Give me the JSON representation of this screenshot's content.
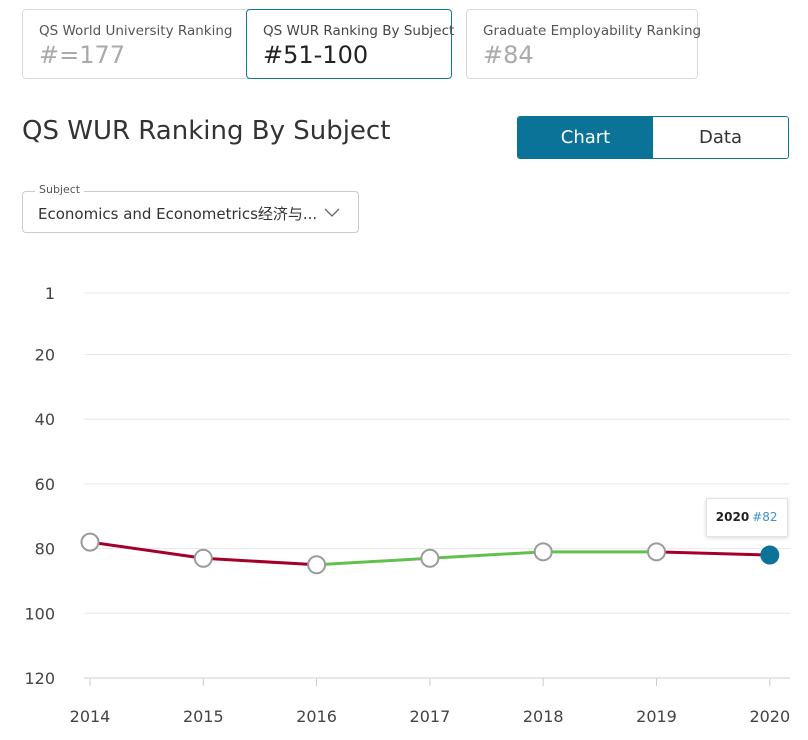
{
  "rank_cards": [
    {
      "label": "QS World University Ranking",
      "value": "#=177"
    },
    {
      "label": "QS WUR Ranking By Subject",
      "value": "#51-100"
    },
    {
      "label": "Graduate Employability Ranking",
      "value": "#84"
    }
  ],
  "section_title": "QS WUR Ranking By Subject",
  "view_toggle": {
    "chart_label": "Chart",
    "data_label": "Data",
    "selected": "Chart"
  },
  "subject_select": {
    "legend": "Subject",
    "value": "Economics and Econometrics经济与..."
  },
  "colors": {
    "accent": "#0c7398",
    "line_down": "#a5002a",
    "line_up": "#62c14d",
    "marker_fill": "#ffffff",
    "marker_stroke": "#9a9a9a",
    "highlight_marker": "#0c7398",
    "tooltip_rank": "#3f8fd6"
  },
  "tooltip": {
    "year": "2020",
    "rank": "#82"
  },
  "chart_data": {
    "type": "line",
    "x": [
      "2014",
      "2015",
      "2016",
      "2017",
      "2018",
      "2019",
      "2020"
    ],
    "values": [
      78,
      83,
      85,
      83,
      81,
      81,
      82
    ],
    "y_axis_reversed": true,
    "ylim": [
      1,
      120
    ],
    "y_ticks": [
      1,
      20,
      40,
      60,
      80,
      100,
      120
    ],
    "y_tick_labels": [
      "1",
      "20",
      "40",
      "60",
      "80",
      "100",
      "120"
    ],
    "grid": true,
    "highlighted_point": "2020",
    "segment_colors_note_keys": [
      "line_down",
      "line_up"
    ]
  }
}
